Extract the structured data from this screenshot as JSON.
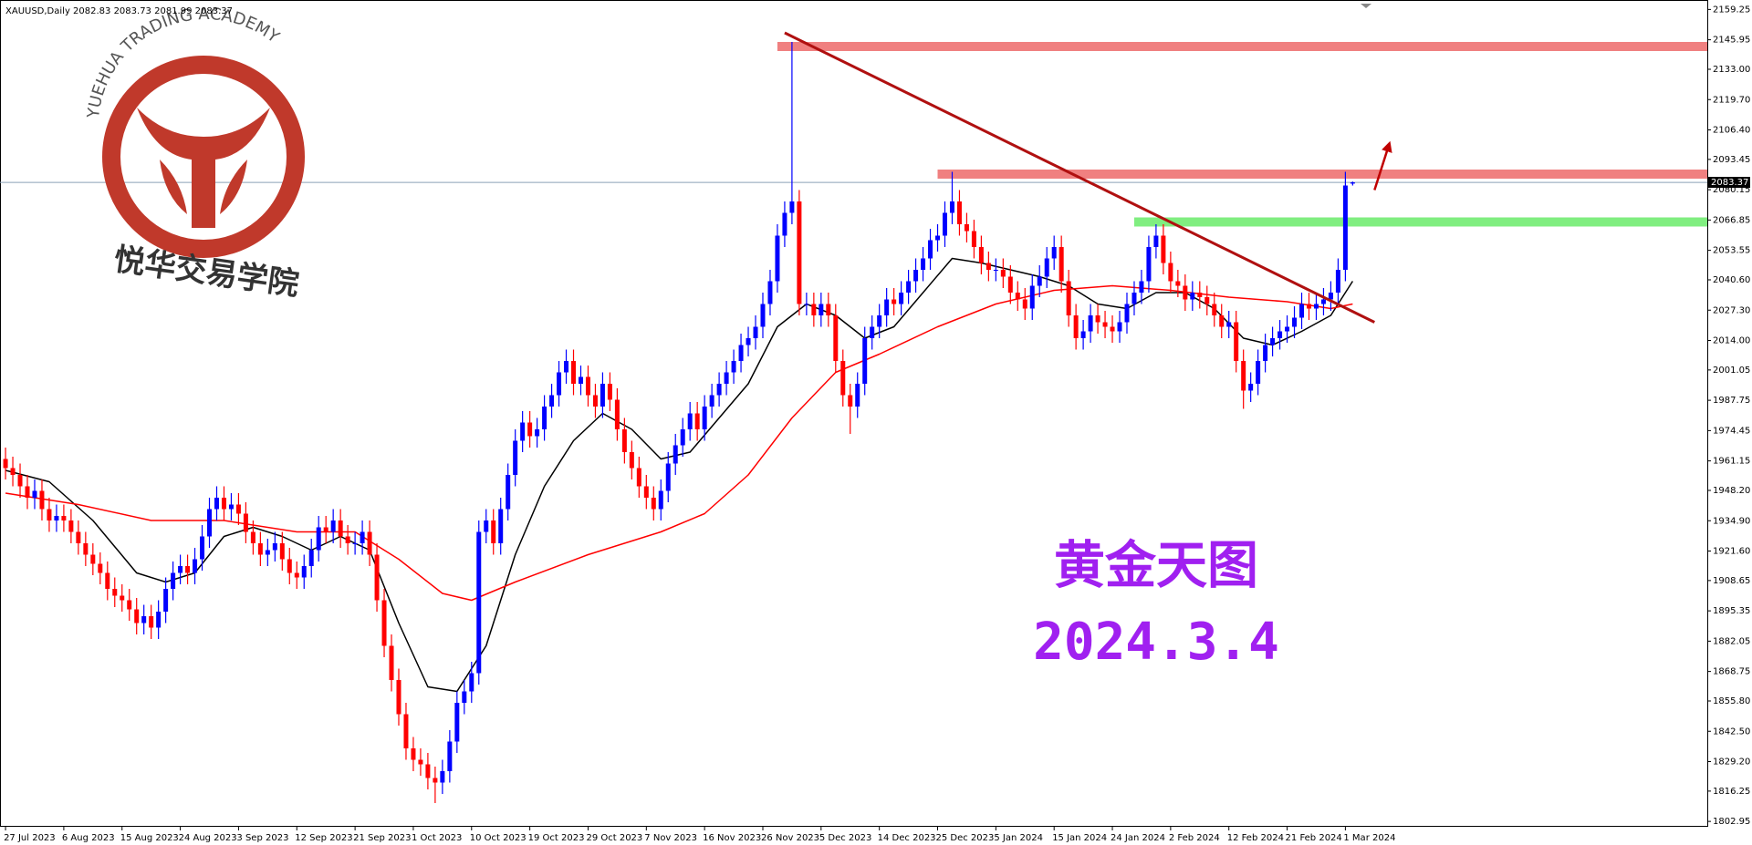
{
  "chart_data": {
    "type": "candlestick",
    "title": "XAUUSD,Daily  2082.83 2083.73 2081.99 2083.37",
    "up_color": "#0000ff",
    "down_color": "#ff0000",
    "open": [
      1962,
      1958,
      1955,
      1950,
      1945,
      1948,
      1940,
      1935,
      1937,
      1935,
      1930,
      1925,
      1920,
      1916,
      1912,
      1905,
      1902,
      1900,
      1896,
      1890,
      1893,
      1888,
      1895,
      1905,
      1912,
      1915,
      1912,
      1918,
      1928,
      1940,
      1945,
      1940,
      1942,
      1938,
      1930,
      1925,
      1920,
      1922,
      1925,
      1918,
      1912,
      1910,
      1915,
      1922,
      1932,
      1930,
      1935,
      1928,
      1925,
      1925,
      1930,
      1920,
      1900,
      1880,
      1865,
      1850,
      1835,
      1830,
      1828,
      1822,
      1820,
      1825,
      1838,
      1855,
      1860,
      1868,
      1930,
      1935,
      1925,
      1940,
      1955,
      1970,
      1978,
      1972,
      1975,
      1985,
      1990,
      2000,
      2005,
      1995,
      1998,
      1990,
      1985,
      1995,
      1988,
      1975,
      1965,
      1958,
      1950,
      1945,
      1940,
      1948,
      1960,
      1968,
      1975,
      1982,
      1975,
      1985,
      1990,
      1995,
      2000,
      2005,
      2012,
      2015,
      2020,
      2030,
      2040,
      2060,
      2070,
      2075,
      2030,
      2030,
      2025,
      2030,
      2025,
      2005,
      1990,
      1985,
      1995,
      2015,
      2020,
      2025,
      2032,
      2030,
      2035,
      2040,
      2045,
      2050,
      2058,
      2060,
      2070,
      2075,
      2065,
      2062,
      2055,
      2048,
      2045,
      2045,
      2042,
      2035,
      2032,
      2028,
      2038,
      2042,
      2050,
      2055,
      2040,
      2025,
      2015,
      2018,
      2025,
      2022,
      2020,
      2018,
      2022,
      2030,
      2035,
      2040,
      2055,
      2060,
      2048,
      2040,
      2038,
      2032,
      2035,
      2033,
      2030,
      2025,
      2020,
      2022,
      2005,
      1992,
      1995,
      2005,
      2012,
      2015,
      2018,
      2020,
      2024,
      2030,
      2028,
      2030,
      2032,
      2035,
      2045,
      2082.83
    ],
    "high": [
      1967,
      1963,
      1960,
      1955,
      1953,
      1953,
      1945,
      1942,
      1942,
      1940,
      1935,
      1930,
      1925,
      1921,
      1917,
      1910,
      1907,
      1905,
      1901,
      1898,
      1898,
      1900,
      1910,
      1917,
      1920,
      1920,
      1923,
      1933,
      1945,
      1950,
      1950,
      1947,
      1947,
      1943,
      1935,
      1930,
      1927,
      1930,
      1930,
      1923,
      1917,
      1920,
      1927,
      1937,
      1937,
      1940,
      1940,
      1933,
      1930,
      1935,
      1935,
      1925,
      1905,
      1885,
      1870,
      1855,
      1840,
      1835,
      1833,
      1827,
      1830,
      1843,
      1860,
      1865,
      1873,
      1935,
      1940,
      1940,
      1945,
      1960,
      1975,
      1983,
      1983,
      1980,
      1990,
      1995,
      2005,
      2010,
      2010,
      2003,
      2003,
      1995,
      2000,
      2000,
      1993,
      1980,
      1970,
      1963,
      1955,
      1950,
      1953,
      1965,
      1973,
      1980,
      1987,
      1987,
      1990,
      1995,
      2000,
      2005,
      2010,
      2017,
      2020,
      2025,
      2035,
      2045,
      2065,
      2075,
      2145,
      2080,
      2035,
      2035,
      2035,
      2035,
      2030,
      2010,
      1995,
      2000,
      2020,
      2025,
      2030,
      2037,
      2037,
      2040,
      2045,
      2050,
      2055,
      2063,
      2065,
      2075,
      2088,
      2080,
      2070,
      2067,
      2060,
      2053,
      2050,
      2050,
      2047,
      2040,
      2037,
      2043,
      2047,
      2055,
      2060,
      2060,
      2045,
      2030,
      2023,
      2030,
      2030,
      2027,
      2025,
      2027,
      2035,
      2040,
      2045,
      2060,
      2065,
      2065,
      2053,
      2045,
      2043,
      2040,
      2040,
      2038,
      2035,
      2030,
      2027,
      2027,
      2010,
      2000,
      2010,
      2017,
      2020,
      2023,
      2025,
      2029,
      2035,
      2035,
      2035,
      2037,
      2040,
      2050,
      2088,
      2083.73
    ],
    "low": [
      1953,
      1950,
      1945,
      1940,
      1940,
      1935,
      1930,
      1930,
      1930,
      1925,
      1920,
      1915,
      1911,
      1907,
      1900,
      1897,
      1895,
      1891,
      1885,
      1885,
      1883,
      1883,
      1890,
      1900,
      1907,
      1907,
      1907,
      1913,
      1923,
      1935,
      1935,
      1935,
      1933,
      1925,
      1920,
      1915,
      1915,
      1917,
      1913,
      1907,
      1905,
      1905,
      1910,
      1917,
      1925,
      1925,
      1923,
      1920,
      1920,
      1920,
      1915,
      1895,
      1875,
      1860,
      1845,
      1830,
      1825,
      1823,
      1817,
      1811,
      1815,
      1820,
      1833,
      1850,
      1855,
      1863,
      1925,
      1920,
      1920,
      1935,
      1950,
      1965,
      1967,
      1967,
      1970,
      1980,
      1985,
      1995,
      1990,
      1990,
      1985,
      1980,
      1980,
      1983,
      1970,
      1960,
      1953,
      1945,
      1940,
      1935,
      1935,
      1943,
      1955,
      1963,
      1970,
      1970,
      1970,
      1980,
      1985,
      1990,
      1995,
      2000,
      2007,
      2010,
      2015,
      2025,
      2035,
      2055,
      2065,
      2025,
      2025,
      2020,
      2020,
      2020,
      2000,
      1985,
      1973,
      1980,
      1990,
      2010,
      2015,
      2020,
      2025,
      2025,
      2030,
      2035,
      2040,
      2045,
      2053,
      2055,
      2065,
      2060,
      2057,
      2050,
      2043,
      2040,
      2040,
      2037,
      2030,
      2027,
      2023,
      2023,
      2033,
      2037,
      2045,
      2035,
      2020,
      2010,
      2010,
      2013,
      2017,
      2015,
      2013,
      2013,
      2017,
      2025,
      2030,
      2035,
      2050,
      2043,
      2035,
      2033,
      2027,
      2027,
      2028,
      2025,
      2020,
      2015,
      2015,
      2000,
      1984,
      1987,
      1990,
      2000,
      2007,
      2010,
      2013,
      2015,
      2019,
      2023,
      2023,
      2025,
      2027,
      2030,
      2040,
      2081.99
    ],
    "close": [
      1958,
      1955,
      1950,
      1945,
      1948,
      1940,
      1935,
      1937,
      1935,
      1930,
      1925,
      1920,
      1916,
      1912,
      1905,
      1902,
      1900,
      1896,
      1890,
      1893,
      1888,
      1895,
      1905,
      1912,
      1915,
      1912,
      1918,
      1928,
      1940,
      1945,
      1940,
      1942,
      1938,
      1930,
      1925,
      1920,
      1922,
      1925,
      1918,
      1912,
      1910,
      1915,
      1922,
      1932,
      1930,
      1935,
      1928,
      1925,
      1925,
      1930,
      1920,
      1900,
      1880,
      1865,
      1850,
      1835,
      1830,
      1828,
      1822,
      1820,
      1825,
      1838,
      1855,
      1860,
      1868,
      1930,
      1935,
      1925,
      1940,
      1955,
      1970,
      1978,
      1972,
      1975,
      1985,
      1990,
      2000,
      2005,
      1995,
      1998,
      1990,
      1985,
      1995,
      1988,
      1975,
      1965,
      1958,
      1950,
      1945,
      1940,
      1948,
      1960,
      1968,
      1975,
      1982,
      1975,
      1985,
      1990,
      1995,
      2000,
      2005,
      2012,
      2015,
      2020,
      2030,
      2040,
      2060,
      2070,
      2075,
      2030,
      2030,
      2025,
      2030,
      2025,
      2005,
      1990,
      1985,
      1995,
      2015,
      2020,
      2025,
      2032,
      2030,
      2035,
      2040,
      2045,
      2050,
      2058,
      2060,
      2070,
      2075,
      2065,
      2062,
      2055,
      2048,
      2045,
      2045,
      2042,
      2035,
      2032,
      2028,
      2038,
      2042,
      2050,
      2055,
      2040,
      2025,
      2015,
      2018,
      2025,
      2022,
      2020,
      2018,
      2022,
      2030,
      2035,
      2040,
      2055,
      2060,
      2048,
      2040,
      2038,
      2032,
      2035,
      2033,
      2030,
      2025,
      2020,
      2022,
      2005,
      1992,
      1995,
      2005,
      2012,
      2015,
      2018,
      2020,
      2024,
      2030,
      2028,
      2030,
      2032,
      2035,
      2045,
      2082,
      2083.37
    ],
    "ma": [
      {
        "color": "#000000",
        "x": [
          0,
          6,
          12,
          18,
          22,
          26,
          30,
          34,
          38,
          42,
          46,
          50,
          54,
          58,
          62,
          66,
          70,
          74,
          78,
          82,
          86,
          90,
          94,
          98,
          102,
          106,
          110,
          114,
          118,
          122,
          126,
          130,
          134,
          138,
          142,
          146,
          150,
          154,
          158,
          162,
          166,
          170,
          174,
          178,
          182,
          185
        ],
        "values": [
          1957,
          1952,
          1935,
          1912,
          1908,
          1912,
          1928,
          1932,
          1928,
          1922,
          1928,
          1922,
          1890,
          1862,
          1860,
          1880,
          1920,
          1950,
          1970,
          1982,
          1975,
          1962,
          1965,
          1980,
          1995,
          2020,
          2030,
          2025,
          2015,
          2020,
          2035,
          2050,
          2048,
          2045,
          2042,
          2038,
          2030,
          2028,
          2035,
          2035,
          2028,
          2015,
          2012,
          2018,
          2025,
          2040
        ]
      },
      {
        "color": "#ff0000",
        "x": [
          0,
          10,
          20,
          30,
          40,
          48,
          54,
          60,
          64,
          70,
          80,
          90,
          96,
          102,
          108,
          114,
          120,
          128,
          136,
          144,
          152,
          160,
          168,
          176,
          182,
          185
        ],
        "values": [
          1947,
          1942,
          1935,
          1935,
          1930,
          1930,
          1918,
          1903,
          1900,
          1908,
          1920,
          1930,
          1938,
          1955,
          1980,
          2000,
          2008,
          2020,
          2030,
          2036,
          2038,
          2036,
          2033,
          2031,
          2028,
          2030
        ]
      }
    ],
    "zones": [
      {
        "color": "#f08080",
        "y": 2143,
        "x_start": 106
      },
      {
        "color": "#f08080",
        "y": 2087,
        "x_start": 128
      },
      {
        "color": "#80ee80",
        "y": 2066,
        "x_start": 155
      }
    ],
    "trendline": {
      "color": "#b01010",
      "x": [
        107,
        188
      ],
      "y": [
        2149,
        2022
      ]
    },
    "arrow": {
      "color": "#c00000",
      "x": [
        188,
        190
      ],
      "y": [
        2080,
        2100
      ]
    },
    "last_price": 2083.37,
    "xlim": [
      -0.76,
      233.7
    ],
    "ylim": [
      1801.0,
      2162.2
    ],
    "yticks": [
      2159.25,
      2145.95,
      {
        "value": 2133,
        "label": "2133.00"
      },
      {
        "value": 2119.7,
        "label": "2119.70"
      },
      {
        "value": 2106.4,
        "label": "2106.40"
      },
      2093.45,
      2080.15,
      2066.85,
      2053.55,
      {
        "value": 2040.6,
        "label": "2040.60"
      },
      {
        "value": 2027.3,
        "label": "2027.30"
      },
      {
        "value": 2014,
        "label": "2014.00"
      },
      2001.05,
      1987.75,
      1974.45,
      1961.15,
      {
        "value": 1948.2,
        "label": "1948.20"
      },
      {
        "value": 1934.9,
        "label": "1934.90"
      },
      {
        "value": 1921.6,
        "label": "1921.60"
      },
      1908.65,
      1895.35,
      1882.05,
      1868.75,
      {
        "value": 1855.8,
        "label": "1855.80"
      },
      {
        "value": 1842.5,
        "label": "1842.50"
      },
      {
        "value": 1829.2,
        "label": "1829.20"
      },
      1816.25,
      1802.95
    ],
    "xticks": [
      {
        "value": 0,
        "label": "27 Jul 2023"
      },
      {
        "value": 8,
        "label": "6 Aug 2023"
      },
      {
        "value": 16,
        "label": "15 Aug 2023"
      },
      {
        "value": 24,
        "label": "24 Aug 2023"
      },
      {
        "value": 32,
        "label": "3 Sep 2023"
      },
      {
        "value": 40,
        "label": "12 Sep 2023"
      },
      {
        "value": 48,
        "label": "21 Sep 2023"
      },
      {
        "value": 56,
        "label": "1 Oct 2023"
      },
      {
        "value": 64,
        "label": "10 Oct 2023"
      },
      {
        "value": 72,
        "label": "19 Oct 2023"
      },
      {
        "value": 80,
        "label": "29 Oct 2023"
      },
      {
        "value": 88,
        "label": "7 Nov 2023"
      },
      {
        "value": 96,
        "label": "16 Nov 2023"
      },
      {
        "value": 104,
        "label": "26 Nov 2023"
      },
      {
        "value": 112,
        "label": "5 Dec 2023"
      },
      {
        "value": 120,
        "label": "14 Dec 2023"
      },
      {
        "value": 128,
        "label": "25 Dec 2023"
      },
      {
        "value": 136,
        "label": "5 Jan 2024"
      },
      {
        "value": 144,
        "label": "15 Jan 2024"
      },
      {
        "value": 152,
        "label": "24 Jan 2024"
      },
      {
        "value": 160,
        "label": "2 Feb 2024"
      },
      {
        "value": 168,
        "label": "12 Feb 2024"
      },
      {
        "value": 176,
        "label": "21 Feb 2024"
      },
      {
        "value": 184,
        "label": "1 Mar 2024"
      }
    ],
    "watermark": {
      "arc_text": "YUEHUA TRADING ACADEMY",
      "cn_text": "悦华交易学院"
    },
    "annotations": [
      "黄金天图",
      "2024.3.4"
    ]
  }
}
